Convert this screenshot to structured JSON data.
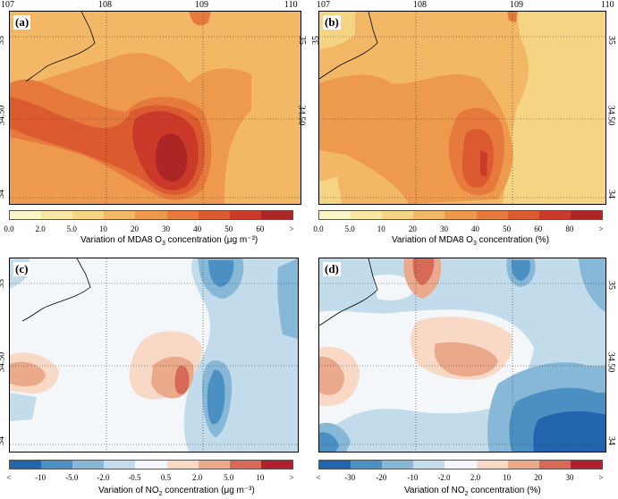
{
  "panels": {
    "a": {
      "label": "(a)"
    },
    "b": {
      "label": "(b)"
    },
    "c": {
      "label": "(c)"
    },
    "d": {
      "label": "(d)"
    }
  },
  "top_ticks": [
    "107",
    "108",
    "109",
    "110"
  ],
  "lat_ticks": [
    "35",
    "34.50",
    "34"
  ],
  "colorbars": {
    "a": {
      "title_pre": "Variation of MDA8 O",
      "title_sub": "3",
      "title_post": " concentration (μg m⁻³)",
      "labels": [
        "0.0",
        "2.0",
        "5.0",
        "10",
        "20",
        "30",
        "40",
        "50",
        "60",
        ">"
      ],
      "colors": [
        "#fbf5c8",
        "#f8e7a3",
        "#f5d583",
        "#f2b866",
        "#ee9a4e",
        "#e67a3c",
        "#dc5a30",
        "#cb3a28",
        "#ad2626"
      ]
    },
    "b": {
      "title_pre": "Variation of MDA8 O",
      "title_sub": "3",
      "title_post": " concentration (%)",
      "labels": [
        "0.0",
        "5.0",
        "10",
        "20",
        "30",
        "40",
        "50",
        "60",
        "80",
        ">"
      ],
      "colors": [
        "#fbf5c8",
        "#f8e7a3",
        "#f5d583",
        "#f2b866",
        "#ee9a4e",
        "#e67a3c",
        "#dc5a30",
        "#cb3a28",
        "#ad2626"
      ]
    },
    "c": {
      "title_pre": "Variation of NO",
      "title_sub": "2",
      "title_post": " concentration (μg m⁻³)",
      "labels": [
        "<",
        "-10",
        "-5.0",
        "-2.0",
        "-0.5",
        "0.5",
        "2.0",
        "5.0",
        "10",
        ">"
      ],
      "colors": [
        "#2166ac",
        "#4a90c2",
        "#87b8d8",
        "#c2dcec",
        "#f4f7fa",
        "#f8d9c6",
        "#eba98c",
        "#d76a56",
        "#b2202d"
      ]
    },
    "d": {
      "title_pre": "Variation of NO",
      "title_sub": "2",
      "title_post": " concentration (%)",
      "labels": [
        "<",
        "-30",
        "-20",
        "-10",
        "-2.0",
        "2.0",
        "10",
        "20",
        "30",
        ">"
      ],
      "colors": [
        "#2166ac",
        "#4a90c2",
        "#87b8d8",
        "#c2dcec",
        "#f4f7fa",
        "#f8d9c6",
        "#eba98c",
        "#d76a56",
        "#b2202d"
      ]
    }
  },
  "colors": {
    "o3_base": "#f2b866",
    "o3_mid": "#ee9a4e",
    "o3_high": "#e67a3c",
    "o3_peak1": "#dc5a30",
    "o3_peak2": "#cb3a28",
    "o3_peak3": "#ad2626",
    "no2_white": "#f4f7fa",
    "no2_blue1": "#c2dcec",
    "no2_blue2": "#87b8d8",
    "no2_blue3": "#4a90c2",
    "no2_blue4": "#2166ac",
    "no2_red1": "#f8d9c6",
    "no2_red2": "#eba98c",
    "no2_red3": "#d76a56",
    "no2_red4": "#b2202d"
  }
}
